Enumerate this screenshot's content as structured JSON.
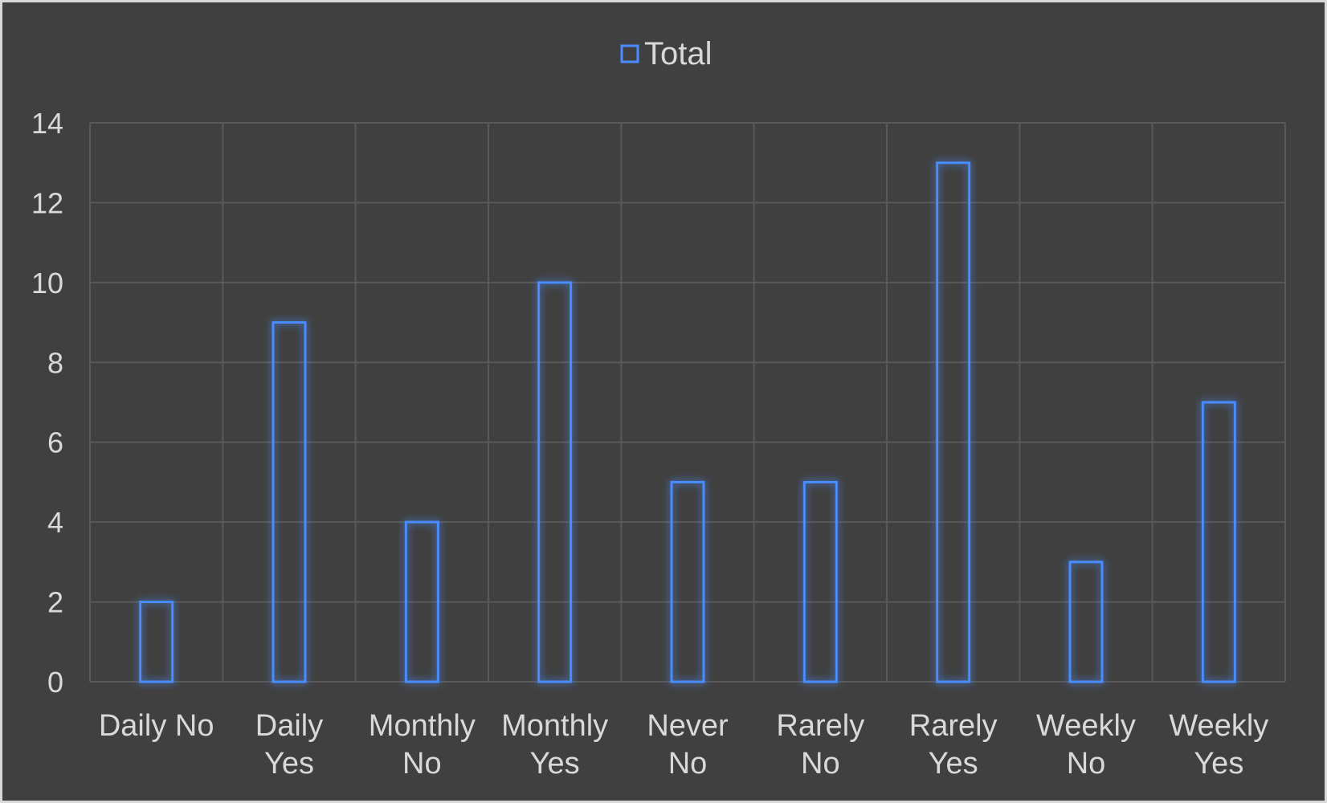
{
  "chart_data": {
    "type": "bar",
    "categories": [
      [
        "Daily No"
      ],
      [
        "Daily",
        "Yes"
      ],
      [
        "Monthly",
        "No"
      ],
      [
        "Monthly",
        "Yes"
      ],
      [
        "Never",
        "No"
      ],
      [
        "Rarely",
        "No"
      ],
      [
        "Rarely",
        "Yes"
      ],
      [
        "Weekly",
        "No"
      ],
      [
        "Weekly",
        "Yes"
      ]
    ],
    "series": [
      {
        "name": "Total",
        "values": [
          2,
          9,
          4,
          10,
          5,
          5,
          13,
          3,
          7
        ]
      }
    ],
    "ylim": [
      0,
      14
    ],
    "yticks": [
      0,
      2,
      4,
      6,
      8,
      10,
      12,
      14
    ],
    "grid": true,
    "legend_position": "top",
    "colors": {
      "background": "#404040",
      "bar_stroke": "#4a8cff",
      "grid": "#595959",
      "text": "#d9d9d9"
    }
  }
}
